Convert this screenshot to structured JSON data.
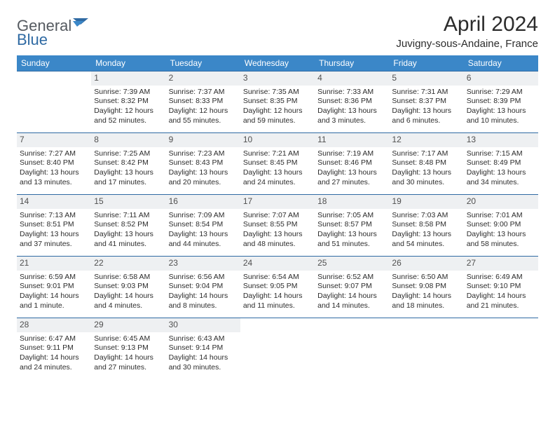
{
  "brand": {
    "word1": "General",
    "word2": "Blue"
  },
  "title": "April 2024",
  "location": "Juvigny-sous-Andaine, France",
  "colors": {
    "header_bg": "#3b87c8",
    "header_text": "#ffffff",
    "row_border": "#2f6aa3",
    "daynum_bg": "#eef0f2",
    "daynum_text": "#505050",
    "body_text": "#2c2c2c",
    "logo_gray": "#555a60",
    "logo_blue": "#2f6aa3"
  },
  "typography": {
    "title_fontsize": 30,
    "location_fontsize": 15,
    "header_fontsize": 12,
    "cell_fontsize": 10.5,
    "daynum_fontsize": 12
  },
  "day_names": [
    "Sunday",
    "Monday",
    "Tuesday",
    "Wednesday",
    "Thursday",
    "Friday",
    "Saturday"
  ],
  "weeks": [
    [
      null,
      {
        "n": "1",
        "sunrise": "Sunrise: 7:39 AM",
        "sunset": "Sunset: 8:32 PM",
        "d1": "Daylight: 12 hours",
        "d2": "and 52 minutes."
      },
      {
        "n": "2",
        "sunrise": "Sunrise: 7:37 AM",
        "sunset": "Sunset: 8:33 PM",
        "d1": "Daylight: 12 hours",
        "d2": "and 55 minutes."
      },
      {
        "n": "3",
        "sunrise": "Sunrise: 7:35 AM",
        "sunset": "Sunset: 8:35 PM",
        "d1": "Daylight: 12 hours",
        "d2": "and 59 minutes."
      },
      {
        "n": "4",
        "sunrise": "Sunrise: 7:33 AM",
        "sunset": "Sunset: 8:36 PM",
        "d1": "Daylight: 13 hours",
        "d2": "and 3 minutes."
      },
      {
        "n": "5",
        "sunrise": "Sunrise: 7:31 AM",
        "sunset": "Sunset: 8:37 PM",
        "d1": "Daylight: 13 hours",
        "d2": "and 6 minutes."
      },
      {
        "n": "6",
        "sunrise": "Sunrise: 7:29 AM",
        "sunset": "Sunset: 8:39 PM",
        "d1": "Daylight: 13 hours",
        "d2": "and 10 minutes."
      }
    ],
    [
      {
        "n": "7",
        "sunrise": "Sunrise: 7:27 AM",
        "sunset": "Sunset: 8:40 PM",
        "d1": "Daylight: 13 hours",
        "d2": "and 13 minutes."
      },
      {
        "n": "8",
        "sunrise": "Sunrise: 7:25 AM",
        "sunset": "Sunset: 8:42 PM",
        "d1": "Daylight: 13 hours",
        "d2": "and 17 minutes."
      },
      {
        "n": "9",
        "sunrise": "Sunrise: 7:23 AM",
        "sunset": "Sunset: 8:43 PM",
        "d1": "Daylight: 13 hours",
        "d2": "and 20 minutes."
      },
      {
        "n": "10",
        "sunrise": "Sunrise: 7:21 AM",
        "sunset": "Sunset: 8:45 PM",
        "d1": "Daylight: 13 hours",
        "d2": "and 24 minutes."
      },
      {
        "n": "11",
        "sunrise": "Sunrise: 7:19 AM",
        "sunset": "Sunset: 8:46 PM",
        "d1": "Daylight: 13 hours",
        "d2": "and 27 minutes."
      },
      {
        "n": "12",
        "sunrise": "Sunrise: 7:17 AM",
        "sunset": "Sunset: 8:48 PM",
        "d1": "Daylight: 13 hours",
        "d2": "and 30 minutes."
      },
      {
        "n": "13",
        "sunrise": "Sunrise: 7:15 AM",
        "sunset": "Sunset: 8:49 PM",
        "d1": "Daylight: 13 hours",
        "d2": "and 34 minutes."
      }
    ],
    [
      {
        "n": "14",
        "sunrise": "Sunrise: 7:13 AM",
        "sunset": "Sunset: 8:51 PM",
        "d1": "Daylight: 13 hours",
        "d2": "and 37 minutes."
      },
      {
        "n": "15",
        "sunrise": "Sunrise: 7:11 AM",
        "sunset": "Sunset: 8:52 PM",
        "d1": "Daylight: 13 hours",
        "d2": "and 41 minutes."
      },
      {
        "n": "16",
        "sunrise": "Sunrise: 7:09 AM",
        "sunset": "Sunset: 8:54 PM",
        "d1": "Daylight: 13 hours",
        "d2": "and 44 minutes."
      },
      {
        "n": "17",
        "sunrise": "Sunrise: 7:07 AM",
        "sunset": "Sunset: 8:55 PM",
        "d1": "Daylight: 13 hours",
        "d2": "and 48 minutes."
      },
      {
        "n": "18",
        "sunrise": "Sunrise: 7:05 AM",
        "sunset": "Sunset: 8:57 PM",
        "d1": "Daylight: 13 hours",
        "d2": "and 51 minutes."
      },
      {
        "n": "19",
        "sunrise": "Sunrise: 7:03 AM",
        "sunset": "Sunset: 8:58 PM",
        "d1": "Daylight: 13 hours",
        "d2": "and 54 minutes."
      },
      {
        "n": "20",
        "sunrise": "Sunrise: 7:01 AM",
        "sunset": "Sunset: 9:00 PM",
        "d1": "Daylight: 13 hours",
        "d2": "and 58 minutes."
      }
    ],
    [
      {
        "n": "21",
        "sunrise": "Sunrise: 6:59 AM",
        "sunset": "Sunset: 9:01 PM",
        "d1": "Daylight: 14 hours",
        "d2": "and 1 minute."
      },
      {
        "n": "22",
        "sunrise": "Sunrise: 6:58 AM",
        "sunset": "Sunset: 9:03 PM",
        "d1": "Daylight: 14 hours",
        "d2": "and 4 minutes."
      },
      {
        "n": "23",
        "sunrise": "Sunrise: 6:56 AM",
        "sunset": "Sunset: 9:04 PM",
        "d1": "Daylight: 14 hours",
        "d2": "and 8 minutes."
      },
      {
        "n": "24",
        "sunrise": "Sunrise: 6:54 AM",
        "sunset": "Sunset: 9:05 PM",
        "d1": "Daylight: 14 hours",
        "d2": "and 11 minutes."
      },
      {
        "n": "25",
        "sunrise": "Sunrise: 6:52 AM",
        "sunset": "Sunset: 9:07 PM",
        "d1": "Daylight: 14 hours",
        "d2": "and 14 minutes."
      },
      {
        "n": "26",
        "sunrise": "Sunrise: 6:50 AM",
        "sunset": "Sunset: 9:08 PM",
        "d1": "Daylight: 14 hours",
        "d2": "and 18 minutes."
      },
      {
        "n": "27",
        "sunrise": "Sunrise: 6:49 AM",
        "sunset": "Sunset: 9:10 PM",
        "d1": "Daylight: 14 hours",
        "d2": "and 21 minutes."
      }
    ],
    [
      {
        "n": "28",
        "sunrise": "Sunrise: 6:47 AM",
        "sunset": "Sunset: 9:11 PM",
        "d1": "Daylight: 14 hours",
        "d2": "and 24 minutes."
      },
      {
        "n": "29",
        "sunrise": "Sunrise: 6:45 AM",
        "sunset": "Sunset: 9:13 PM",
        "d1": "Daylight: 14 hours",
        "d2": "and 27 minutes."
      },
      {
        "n": "30",
        "sunrise": "Sunrise: 6:43 AM",
        "sunset": "Sunset: 9:14 PM",
        "d1": "Daylight: 14 hours",
        "d2": "and 30 minutes."
      },
      null,
      null,
      null,
      null
    ]
  ]
}
